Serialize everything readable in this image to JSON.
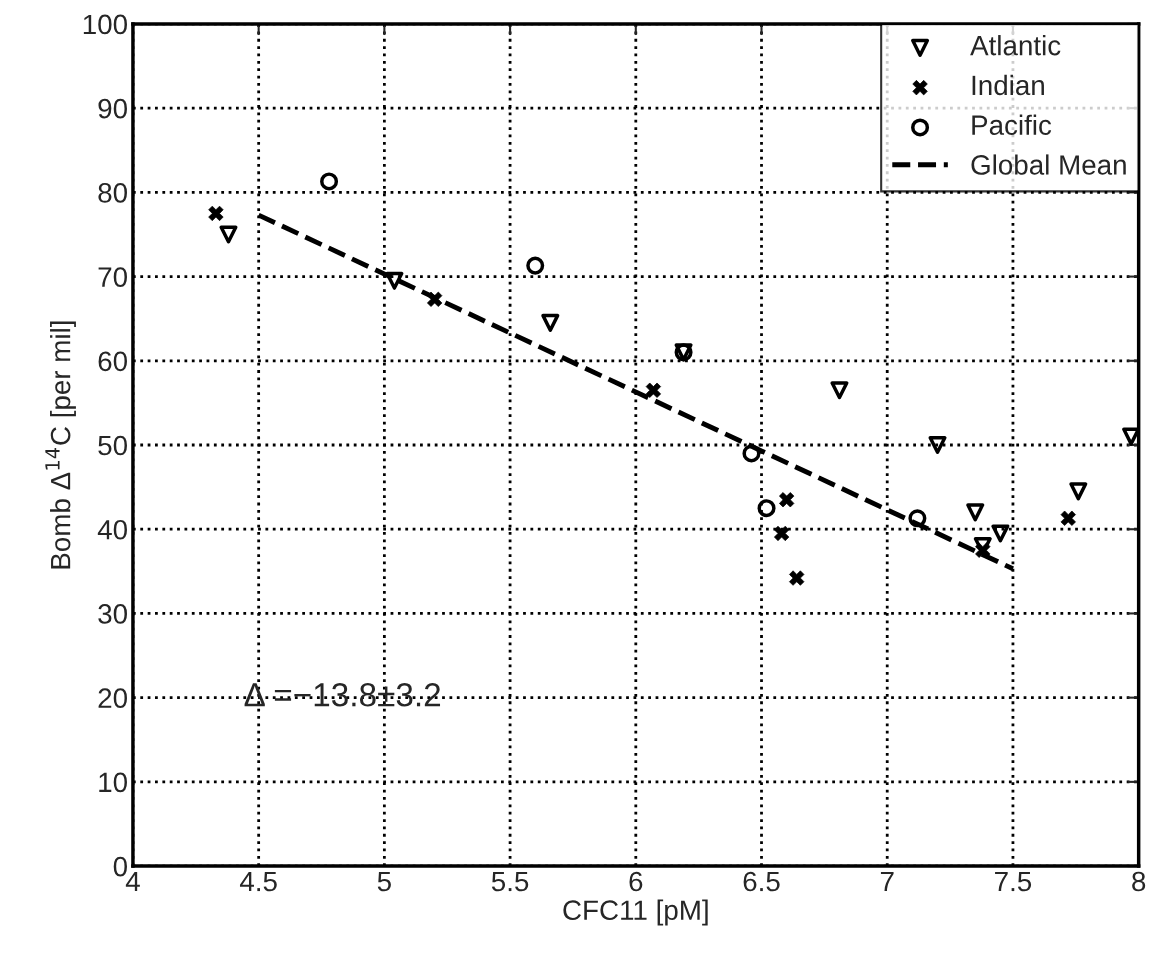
{
  "chart_data": {
    "type": "scatter",
    "xlabel": "CFC11 [pM]",
    "ylabel": "Bomb Δ$^{14}$C [per mil]",
    "xlim": [
      4,
      8
    ],
    "xticks": [
      4,
      4.5,
      5,
      5.5,
      6,
      6.5,
      7,
      7.5,
      8
    ],
    "ylim": [
      0,
      100
    ],
    "yticks": [
      0,
      10,
      20,
      30,
      40,
      50,
      60,
      70,
      80,
      90,
      100
    ],
    "grid": true,
    "legend": "top right",
    "annotations": [
      "Δ =−13.8±3.2"
    ],
    "series": [
      {
        "name": "Atlantic",
        "marker": "triangle",
        "color": "#000000",
        "x": [
          4.38,
          5.04,
          5.66,
          6.19,
          6.81,
          7.2,
          7.35,
          7.38,
          7.45,
          7.76,
          7.97
        ],
        "values": [
          75,
          69.5,
          64.5,
          61,
          56.5,
          50,
          42,
          38,
          39.5,
          44.5,
          51
        ]
      },
      {
        "name": "Indian",
        "marker": "cross",
        "color": "#000000",
        "x": [
          4.33,
          5.2,
          6.07,
          6.6,
          6.58,
          6.64,
          7.38,
          7.72
        ],
        "values": [
          77.5,
          67.3,
          56.5,
          43.5,
          39.5,
          34.2,
          37.5,
          41.3
        ]
      },
      {
        "name": "Pacific",
        "marker": "circle",
        "color": "#000000",
        "x": [
          4.78,
          5.6,
          6.19,
          6.46,
          6.52,
          7.12
        ],
        "values": [
          81.3,
          71.3,
          61,
          49,
          42.5,
          41.3
        ]
      },
      {
        "name": "Global Mean",
        "type": "line",
        "line_style": "dashed",
        "color": "#000000",
        "x": [
          4.5,
          7.5
        ],
        "values": [
          77.3,
          35.3
        ]
      }
    ]
  }
}
